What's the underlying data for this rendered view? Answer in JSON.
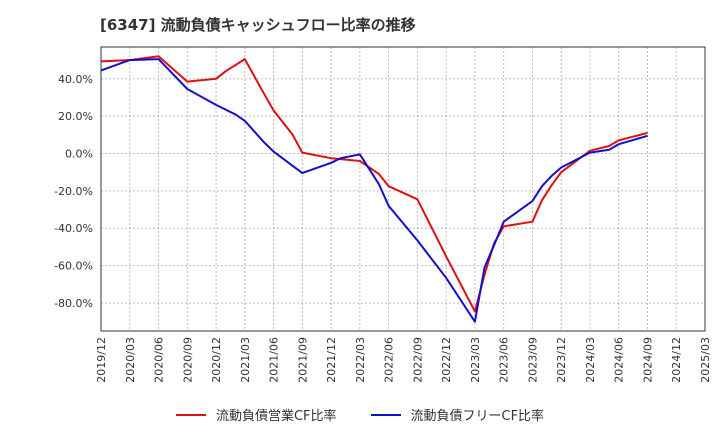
{
  "chart_data": {
    "type": "line",
    "title": "[6347]  流動負債キャッシュフロー比率の推移",
    "xlabel": "",
    "ylabel": "",
    "ylim": [
      -95,
      57
    ],
    "yticks": [
      40,
      20,
      0,
      -20,
      -40,
      -60,
      -80
    ],
    "ytick_labels": [
      "40.0%",
      "20.0%",
      "0.0%",
      "-20.0%",
      "-40.0%",
      "-60.0%",
      "-80.0%"
    ],
    "x_tick_labels": [
      "2019/12",
      "2020/03",
      "2020/06",
      "2020/09",
      "2020/12",
      "2021/03",
      "2021/06",
      "2021/09",
      "2021/12",
      "2022/03",
      "2022/06",
      "2022/09",
      "2022/12",
      "2023/03",
      "2023/06",
      "2023/09",
      "2023/12",
      "2024/03",
      "2024/06",
      "2024/09",
      "2024/12",
      "2025/03"
    ],
    "grid": true,
    "legend_position": "bottom",
    "series": [
      {
        "name": "流動負債営業CF比率",
        "color": "#dd1111",
        "points": [
          [
            "2019/12",
            49.3
          ],
          [
            "2020/03",
            50.0
          ],
          [
            "2020/06",
            52.0
          ],
          [
            "2020/09",
            38.5
          ],
          [
            "2020/12",
            40.0
          ],
          [
            "2021/01",
            44.0
          ],
          [
            "2021/03",
            50.5
          ],
          [
            "2021/05",
            32.0
          ],
          [
            "2021/06",
            23.0
          ],
          [
            "2021/08",
            10.0
          ],
          [
            "2021/09",
            0.5
          ],
          [
            "2021/12",
            -2.5
          ],
          [
            "2022/03",
            -4.0
          ],
          [
            "2022/05",
            -11.0
          ],
          [
            "2022/06",
            -17.5
          ],
          [
            "2022/09",
            -24.5
          ],
          [
            "2022/12",
            -55.0
          ],
          [
            "2023/03",
            -84.5
          ],
          [
            "2023/04",
            -65.0
          ],
          [
            "2023/05",
            -48.0
          ],
          [
            "2023/06",
            -39.0
          ],
          [
            "2023/09",
            -36.5
          ],
          [
            "2023/10",
            -25.0
          ],
          [
            "2023/11",
            -17.0
          ],
          [
            "2023/12",
            -10.0
          ],
          [
            "2024/03",
            1.5
          ],
          [
            "2024/05",
            4.0
          ],
          [
            "2024/06",
            7.0
          ],
          [
            "2024/09",
            11.0
          ]
        ]
      },
      {
        "name": "流動負債フリーCF比率",
        "color": "#1111cc",
        "points": [
          [
            "2019/12",
            44.5
          ],
          [
            "2020/03",
            50.0
          ],
          [
            "2020/06",
            50.5
          ],
          [
            "2020/09",
            34.5
          ],
          [
            "2020/12",
            26.0
          ],
          [
            "2021/02",
            21.0
          ],
          [
            "2021/03",
            17.5
          ],
          [
            "2021/05",
            6.0
          ],
          [
            "2021/06",
            1.0
          ],
          [
            "2021/09",
            -10.5
          ],
          [
            "2021/12",
            -5.0
          ],
          [
            "2022/01",
            -2.5
          ],
          [
            "2022/03",
            -0.5
          ],
          [
            "2022/05",
            -16.5
          ],
          [
            "2022/06",
            -28.0
          ],
          [
            "2022/09",
            -46.5
          ],
          [
            "2022/12",
            -66.5
          ],
          [
            "2023/03",
            -90.0
          ],
          [
            "2023/04",
            -61.0
          ],
          [
            "2023/05",
            -49.0
          ],
          [
            "2023/06",
            -36.5
          ],
          [
            "2023/09",
            -25.5
          ],
          [
            "2023/10",
            -17.5
          ],
          [
            "2023/11",
            -12.0
          ],
          [
            "2023/12",
            -7.5
          ],
          [
            "2024/03",
            0.5
          ],
          [
            "2024/05",
            2.0
          ],
          [
            "2024/06",
            5.0
          ],
          [
            "2024/09",
            9.5
          ]
        ]
      }
    ]
  }
}
